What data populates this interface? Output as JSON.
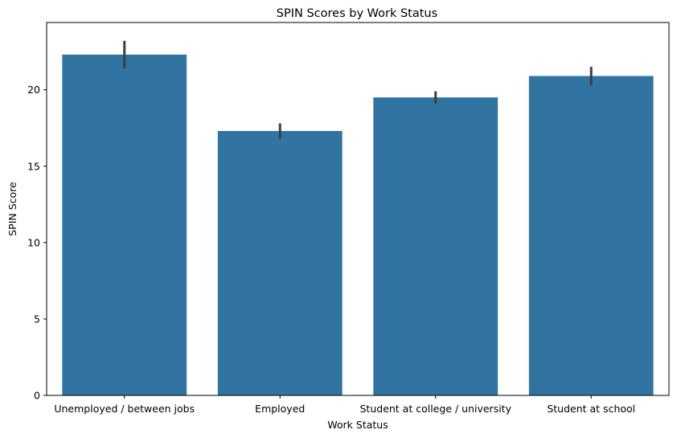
{
  "chart_data": {
    "type": "bar",
    "title": "SPIN Scores by Work Status",
    "xlabel": "Work Status",
    "ylabel": "SPIN Score",
    "categories": [
      "Unemployed / between jobs",
      "Employed",
      "Student at college / university",
      "Student at school"
    ],
    "values": [
      22.3,
      17.3,
      19.5,
      20.9
    ],
    "error_low": [
      21.4,
      16.8,
      19.1,
      20.3
    ],
    "error_high": [
      23.2,
      17.8,
      19.9,
      21.5
    ],
    "ylim": [
      0,
      24.4
    ],
    "yticks": [
      0,
      5,
      10,
      15,
      20
    ],
    "grid": false,
    "colors": {
      "bar": "#3274a1",
      "error_bar": "#3d3d3d",
      "axis": "#000000"
    }
  }
}
